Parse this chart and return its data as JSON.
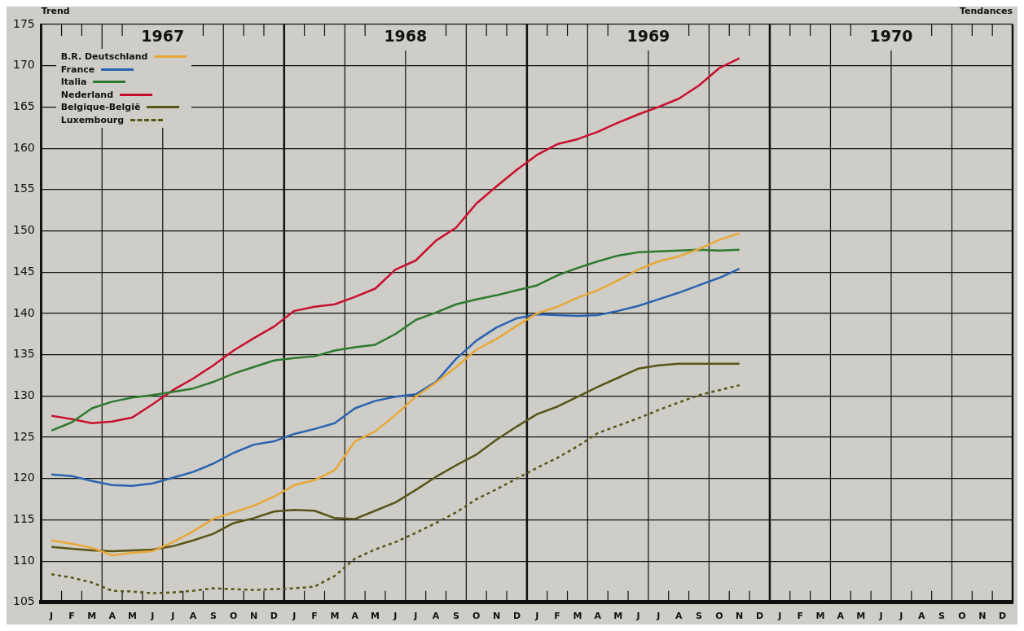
{
  "chart_data": {
    "type": "line",
    "annotations": [
      "Trend",
      "Tendances",
      "1967",
      "1968",
      "1969",
      "1970"
    ],
    "categories": [
      "J",
      "F",
      "M",
      "A",
      "M",
      "J",
      "J",
      "A",
      "S",
      "O",
      "N",
      "D",
      "J",
      "F",
      "M",
      "A",
      "M",
      "J",
      "J",
      "A",
      "S",
      "O",
      "N",
      "D",
      "J",
      "F",
      "M",
      "A",
      "M",
      "J",
      "J",
      "A",
      "S",
      "O",
      "N",
      "D",
      "J",
      "F",
      "M",
      "A",
      "M",
      "J",
      "J",
      "A",
      "S",
      "O",
      "N",
      "D"
    ],
    "ylim": [
      105,
      175
    ],
    "yticks": [
      105,
      110,
      115,
      120,
      125,
      130,
      135,
      140,
      145,
      150,
      155,
      160,
      165,
      170,
      175
    ],
    "grid": true,
    "legend": "top left",
    "series": [
      {
        "name": "B.R. Deutschland",
        "color": "#e8a838",
        "values": [
          112.5,
          112.1,
          111.6,
          110.7,
          111.0,
          111.2,
          112.3,
          113.6,
          115.1,
          115.9,
          116.7,
          117.8,
          119.2,
          119.8,
          121.0,
          124.5,
          125.7,
          127.7,
          129.9,
          131.6,
          133.5,
          135.6,
          136.9,
          138.5,
          140.0,
          140.8,
          141.9,
          142.8,
          144.0,
          145.3,
          146.3,
          146.9,
          147.8,
          148.9,
          149.7,
          null,
          null,
          null,
          null,
          null,
          null,
          null,
          null,
          null,
          null,
          null,
          null,
          null
        ]
      },
      {
        "name": "France",
        "color": "#2a63b0",
        "values": [
          120.5,
          120.3,
          119.7,
          119.2,
          119.1,
          119.4,
          120.1,
          120.8,
          121.8,
          123.1,
          124.1,
          124.5,
          125.4,
          126.0,
          126.7,
          128.5,
          129.4,
          129.9,
          130.2,
          131.7,
          134.5,
          136.7,
          138.3,
          139.4,
          139.9,
          139.8,
          139.7,
          139.8,
          140.3,
          140.9,
          141.7,
          142.5,
          143.4,
          144.3,
          145.4,
          null,
          null,
          null,
          null,
          null,
          null,
          null,
          null,
          null,
          null,
          null,
          null,
          null
        ]
      },
      {
        "name": "Italia",
        "color": "#2e7a2e",
        "values": [
          125.8,
          126.8,
          128.5,
          129.3,
          129.8,
          130.1,
          130.5,
          130.9,
          131.7,
          132.7,
          133.5,
          134.3,
          134.6,
          134.8,
          135.5,
          135.9,
          136.2,
          137.5,
          139.2,
          140.1,
          141.1,
          141.7,
          142.2,
          142.8,
          143.4,
          144.6,
          145.5,
          146.3,
          147.0,
          147.4,
          147.5,
          147.6,
          147.7,
          147.6,
          147.7,
          null,
          null,
          null,
          null,
          null,
          null,
          null,
          null,
          null,
          null,
          null,
          null,
          null
        ]
      },
      {
        "name": "Nederland",
        "color": "#c8102e",
        "values": [
          127.6,
          127.2,
          126.7,
          126.9,
          127.4,
          129.0,
          130.7,
          132.1,
          133.7,
          135.5,
          137.0,
          138.4,
          140.3,
          140.8,
          141.1,
          142.0,
          143.0,
          145.3,
          146.4,
          148.8,
          150.4,
          153.3,
          155.4,
          157.4,
          159.2,
          160.5,
          161.1,
          162.0,
          163.1,
          164.1,
          165.0,
          166.0,
          167.6,
          169.7,
          170.9,
          null,
          null,
          null,
          null,
          null,
          null,
          null,
          null,
          null,
          null,
          null,
          null,
          null
        ]
      },
      {
        "name": "Belgique-België",
        "color": "#5a5418",
        "values": [
          111.7,
          111.5,
          111.3,
          111.2,
          111.3,
          111.4,
          111.8,
          112.5,
          113.3,
          114.6,
          115.2,
          116.0,
          116.2,
          116.1,
          115.2,
          115.1,
          116.1,
          117.1,
          118.6,
          120.2,
          121.6,
          122.9,
          124.7,
          126.3,
          127.8,
          128.7,
          129.9,
          131.1,
          132.2,
          133.3,
          133.7,
          133.9,
          133.9,
          133.9,
          133.9,
          null,
          null,
          null,
          null,
          null,
          null,
          null,
          null,
          null,
          null,
          null,
          null,
          null
        ]
      },
      {
        "name": "Luxembourg",
        "color": "#5a5418",
        "line_style": "dashed",
        "values": [
          108.4,
          108.0,
          107.4,
          106.4,
          106.3,
          106.1,
          106.2,
          106.4,
          106.7,
          106.6,
          106.5,
          106.6,
          106.7,
          106.9,
          108.2,
          110.3,
          111.4,
          112.3,
          113.4,
          114.6,
          115.9,
          117.5,
          118.7,
          120.0,
          121.3,
          122.5,
          123.9,
          125.5,
          126.4,
          127.3,
          128.3,
          129.2,
          130.1,
          130.7,
          131.3,
          null,
          null,
          null,
          null,
          null,
          null,
          null,
          null,
          null,
          null,
          null,
          null,
          null
        ]
      }
    ]
  }
}
